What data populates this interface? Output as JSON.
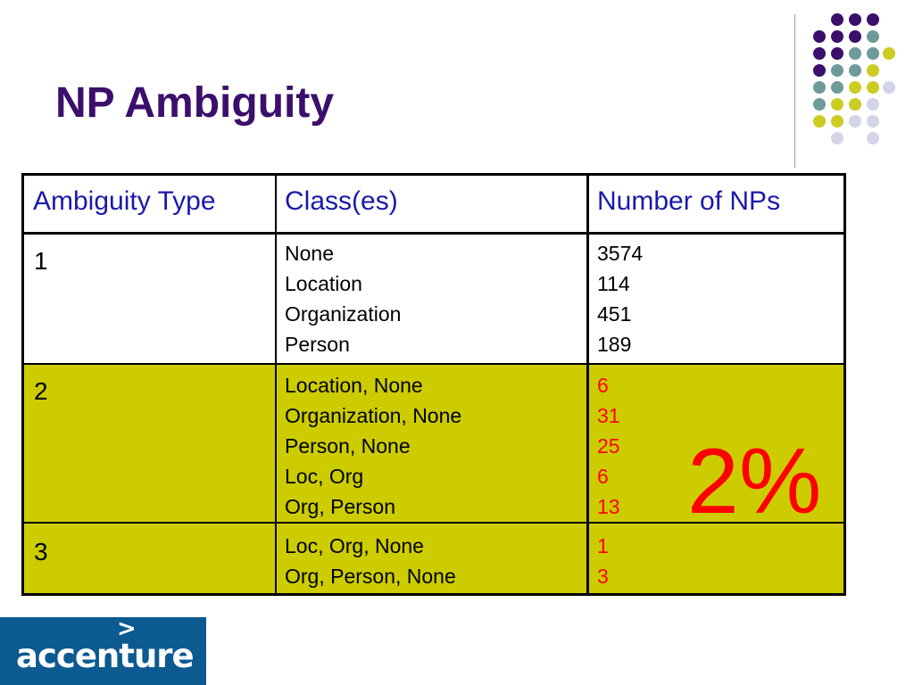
{
  "slide": {
    "title": "NP Ambiguity",
    "colors": {
      "title": "#3b0f6b",
      "header_text": "#1a1aa8",
      "highlight_rows": "#cccc00",
      "red_values": "#ff0000",
      "logo_bg": "#0b5a91",
      "dot_purple": "#3b0f6b",
      "dot_teal": "#6e9a9a",
      "dot_yellow": "#cccc22",
      "dot_lavender": "#d4d4e8"
    }
  },
  "table": {
    "headers": [
      "Ambiguity Type",
      "Class(es)",
      "Number of NPs"
    ],
    "rows": [
      {
        "type": "1",
        "classes": [
          "None",
          "Location",
          "Organization",
          "Person"
        ],
        "counts": [
          "3574",
          "114",
          "451",
          "189"
        ]
      },
      {
        "type": "2",
        "classes": [
          "Location, None",
          "Organization, None",
          "Person, None",
          "Loc, Org",
          "Org, Person"
        ],
        "counts": [
          "6",
          "31",
          "25",
          "6",
          "13"
        ]
      },
      {
        "type": "3",
        "classes": [
          "Loc, Org, None",
          "Org, Person, None"
        ],
        "counts": [
          "1",
          "3"
        ]
      }
    ]
  },
  "annotation": "2%",
  "logo": {
    "text": "accenture",
    "mark": ">"
  }
}
